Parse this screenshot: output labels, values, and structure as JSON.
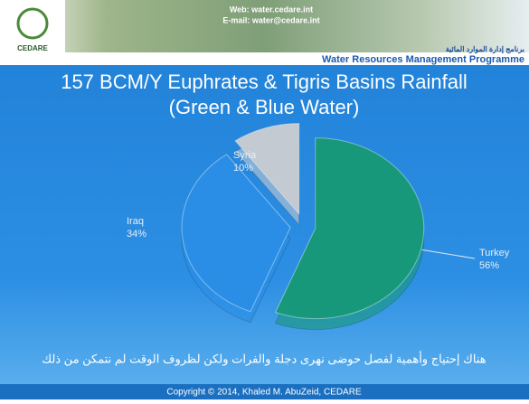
{
  "header": {
    "web": "Web: water.cedare.int",
    "email": "E-mail: water@cedare.int",
    "logo": "CEDARE",
    "programme_ar": "برنامج إدارة الموارد المائية",
    "programme": "Water Resources Management Programme"
  },
  "chart_data": {
    "type": "pie",
    "title": "157 BCM/Y Euphrates & Tigris Basins Rainfall",
    "subtitle": "(Green & Blue Water)",
    "categories": [
      "Turkey",
      "Iraq",
      "Syria"
    ],
    "values": [
      56,
      34,
      10
    ],
    "value_labels": [
      "56%",
      "34%",
      "10%"
    ],
    "colors": [
      "#17987a",
      "#2a8ee6",
      "#c3cad2"
    ]
  },
  "footer": {
    "note": "هناك إحتياج وأهمية لفصل حوضى نهرى دجلة والفرات ولكن لظروف الوقت لم نتمكن من ذلك",
    "copyright": "Copyright © 2014, Khaled M. AbuZeid, CEDARE"
  }
}
